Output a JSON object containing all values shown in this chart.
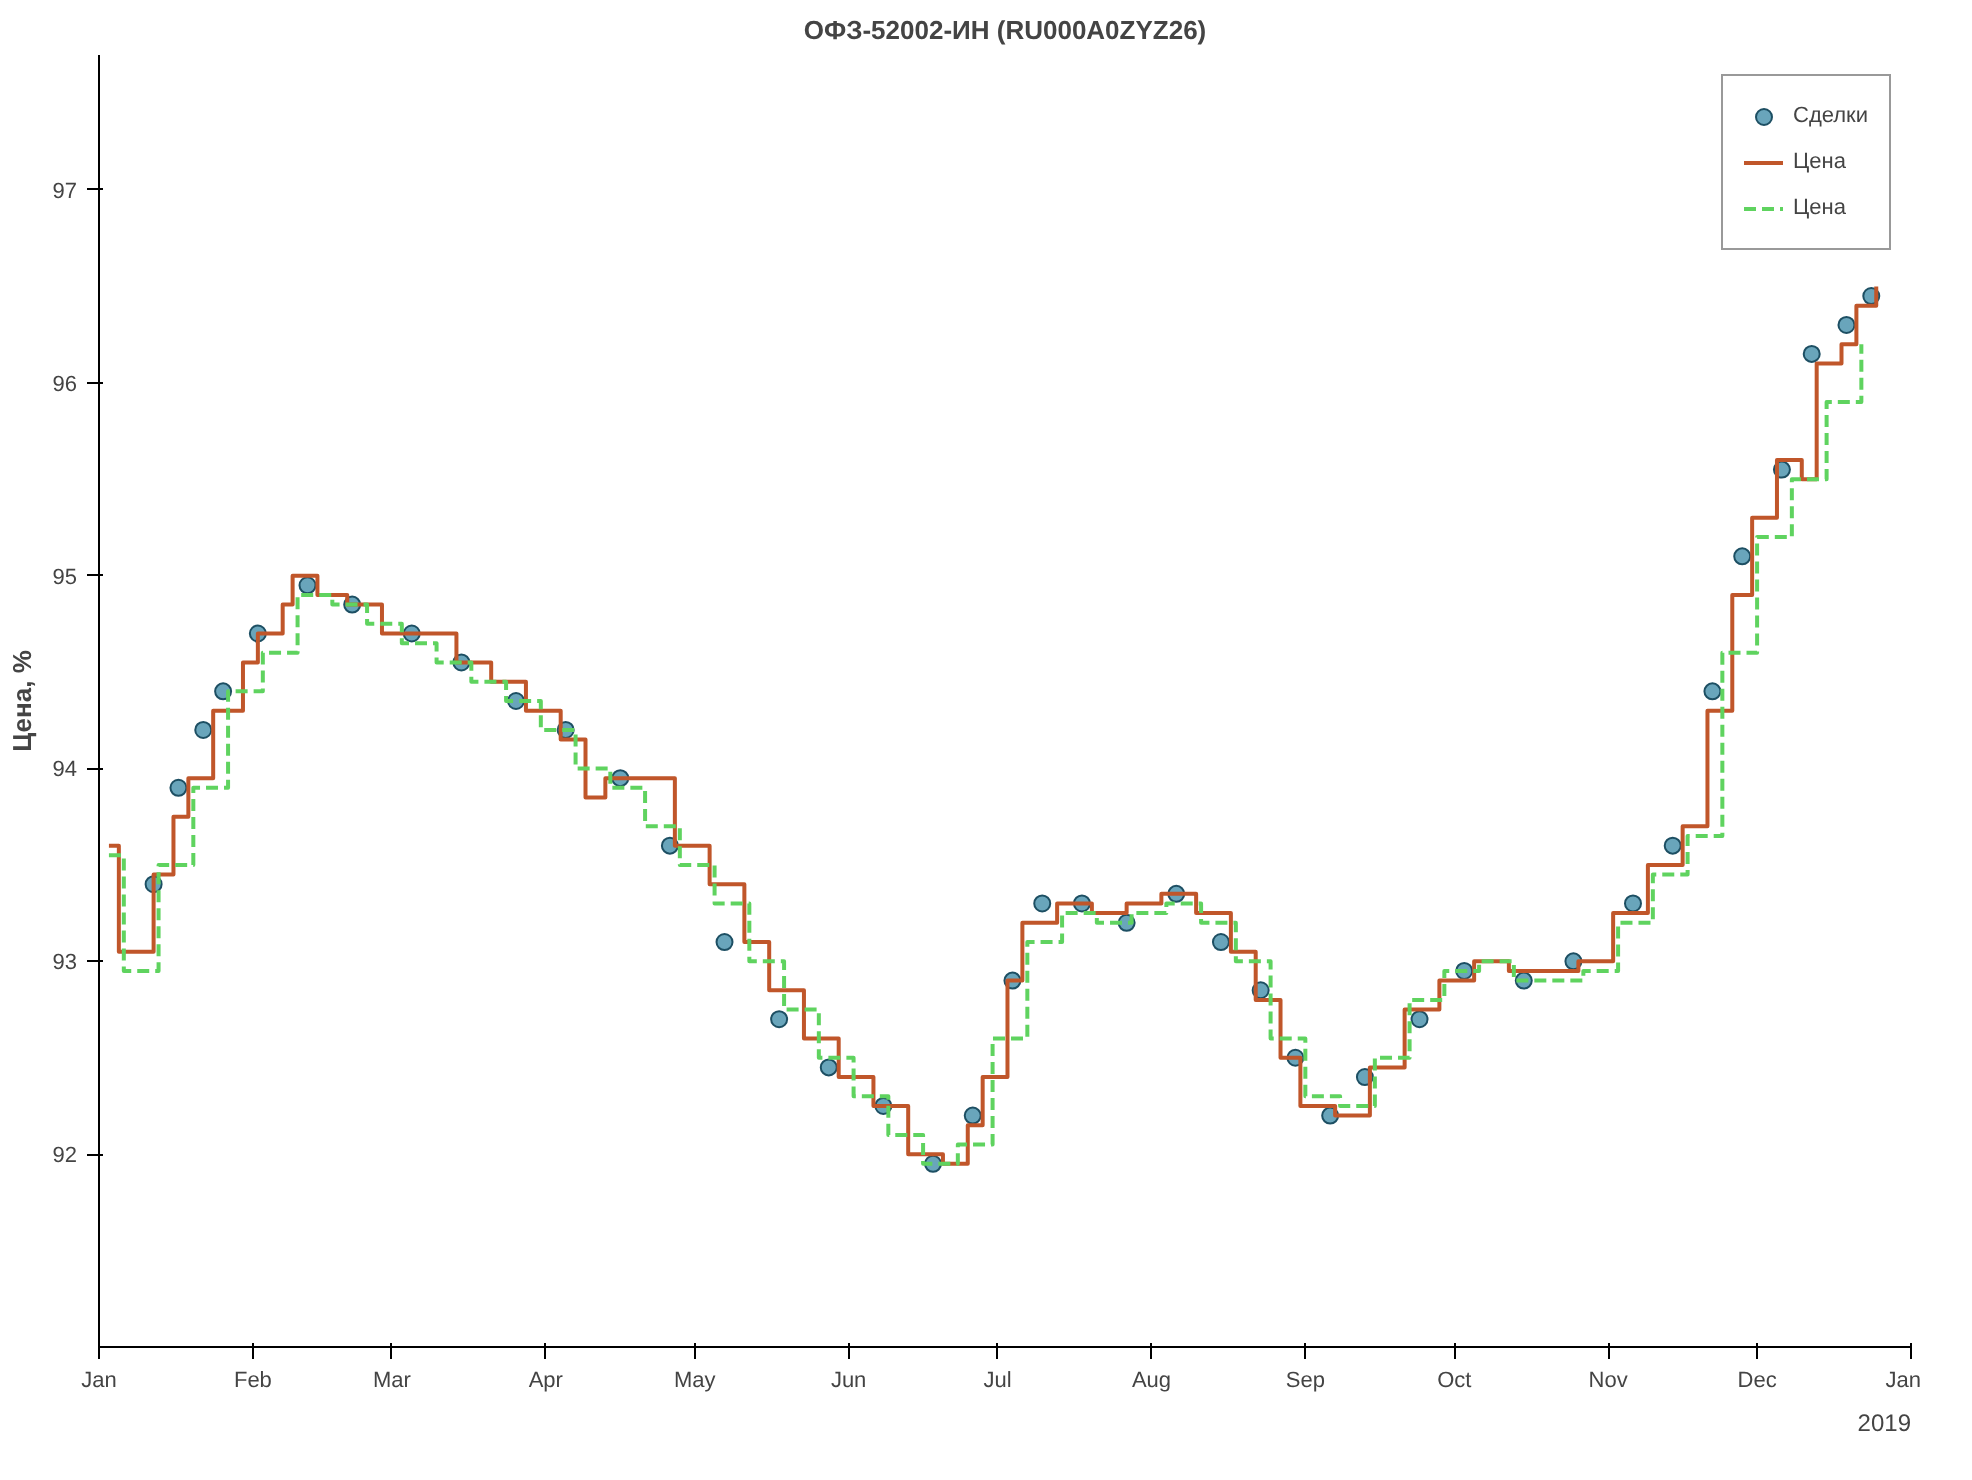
{
  "chart_data": {
    "type": "step",
    "title": "ОФЗ-52002-ИН (RU000A0ZYZ26)",
    "ylabel": "Цена, %",
    "xlim": [
      "2018-01-01",
      "2019-01-01"
    ],
    "xticks": [
      {
        "value": "2018-01-01",
        "label": "Jan"
      },
      {
        "value": "2018-02-01",
        "label": "Feb"
      },
      {
        "value": "2018-03-01",
        "label": "Mar"
      },
      {
        "value": "2018-04-01",
        "label": "Apr"
      },
      {
        "value": "2018-05-01",
        "label": "May"
      },
      {
        "value": "2018-06-01",
        "label": "Jun"
      },
      {
        "value": "2018-07-01",
        "label": "Jul"
      },
      {
        "value": "2018-08-01",
        "label": "Aug"
      },
      {
        "value": "2018-09-01",
        "label": "Sep"
      },
      {
        "value": "2018-10-01",
        "label": "Oct"
      },
      {
        "value": "2018-11-01",
        "label": "Nov"
      },
      {
        "value": "2018-12-01",
        "label": "Dec"
      },
      {
        "value": "2019-01-01",
        "label": "Jan"
      }
    ],
    "ylim": [
      91.0,
      97.7
    ],
    "yticks": [
      92,
      93,
      94,
      95,
      96,
      97
    ],
    "grid": false,
    "legend": "top right",
    "annotations": [
      "2019"
    ],
    "series": [
      {
        "name": "Сделки",
        "type": "scatter",
        "marker": "circle",
        "color": "#2a7f9e",
        "x": [
          "2018-01-12",
          "2018-01-17",
          "2018-01-22",
          "2018-01-26",
          "2018-02-02",
          "2018-02-12",
          "2018-02-21",
          "2018-03-05",
          "2018-03-15",
          "2018-03-26",
          "2018-04-05",
          "2018-04-16",
          "2018-04-26",
          "2018-05-07",
          "2018-05-18",
          "2018-05-28",
          "2018-06-08",
          "2018-06-18",
          "2018-06-26",
          "2018-07-04",
          "2018-07-10",
          "2018-07-18",
          "2018-07-27",
          "2018-08-06",
          "2018-08-15",
          "2018-08-23",
          "2018-08-30",
          "2018-09-06",
          "2018-09-13",
          "2018-09-24",
          "2018-10-03",
          "2018-10-15",
          "2018-10-25",
          "2018-11-06",
          "2018-11-14",
          "2018-11-22",
          "2018-11-28",
          "2018-12-06",
          "2018-12-12",
          "2018-12-19",
          "2018-12-24"
        ],
        "values": [
          93.4,
          93.9,
          94.2,
          94.4,
          94.7,
          94.95,
          94.85,
          94.7,
          94.55,
          94.35,
          94.2,
          93.95,
          93.6,
          93.1,
          92.7,
          92.45,
          92.25,
          91.95,
          92.2,
          92.9,
          93.3,
          93.3,
          93.2,
          93.35,
          93.1,
          92.85,
          92.5,
          92.2,
          92.4,
          92.7,
          92.95,
          92.9,
          93.0,
          93.3,
          93.6,
          94.4,
          95.1,
          95.55,
          96.15,
          96.3,
          96.45
        ]
      },
      {
        "name": "Цена",
        "line_style": "solid",
        "color": "#c0562a",
        "x": [
          "2018-01-03",
          "2018-01-05",
          "2018-01-12",
          "2018-01-16",
          "2018-01-19",
          "2018-01-24",
          "2018-01-30",
          "2018-02-02",
          "2018-02-07",
          "2018-02-09",
          "2018-02-14",
          "2018-02-20",
          "2018-02-27",
          "2018-03-07",
          "2018-03-14",
          "2018-03-21",
          "2018-03-28",
          "2018-04-04",
          "2018-04-09",
          "2018-04-13",
          "2018-04-20",
          "2018-04-27",
          "2018-05-04",
          "2018-05-11",
          "2018-05-16",
          "2018-05-23",
          "2018-05-30",
          "2018-06-06",
          "2018-06-13",
          "2018-06-20",
          "2018-06-25",
          "2018-06-28",
          "2018-07-03",
          "2018-07-06",
          "2018-07-13",
          "2018-07-20",
          "2018-07-27",
          "2018-08-03",
          "2018-08-10",
          "2018-08-17",
          "2018-08-22",
          "2018-08-27",
          "2018-08-31",
          "2018-09-07",
          "2018-09-14",
          "2018-09-21",
          "2018-09-28",
          "2018-10-05",
          "2018-10-12",
          "2018-10-19",
          "2018-10-26",
          "2018-11-02",
          "2018-11-09",
          "2018-11-16",
          "2018-11-21",
          "2018-11-26",
          "2018-11-30",
          "2018-12-05",
          "2018-12-10",
          "2018-12-13",
          "2018-12-18",
          "2018-12-21",
          "2018-12-25"
        ],
        "values": [
          93.6,
          93.05,
          93.45,
          93.75,
          93.95,
          94.3,
          94.55,
          94.7,
          94.85,
          95.0,
          94.9,
          94.85,
          94.7,
          94.7,
          94.55,
          94.45,
          94.3,
          94.15,
          93.85,
          93.95,
          93.95,
          93.6,
          93.4,
          93.1,
          92.85,
          92.6,
          92.4,
          92.25,
          92.0,
          91.95,
          92.15,
          92.4,
          92.9,
          93.2,
          93.3,
          93.25,
          93.3,
          93.35,
          93.25,
          93.05,
          92.8,
          92.5,
          92.25,
          92.2,
          92.45,
          92.75,
          92.9,
          93.0,
          92.95,
          92.95,
          93.0,
          93.25,
          93.5,
          93.7,
          94.3,
          94.9,
          95.3,
          95.6,
          95.5,
          96.1,
          96.2,
          96.4,
          96.5
        ]
      },
      {
        "name": "Цена",
        "line_style": "dashed",
        "color": "#5fd35f",
        "x": [
          "2018-01-03",
          "2018-01-06",
          "2018-01-13",
          "2018-01-20",
          "2018-01-27",
          "2018-02-03",
          "2018-02-10",
          "2018-02-17",
          "2018-02-24",
          "2018-03-03",
          "2018-03-10",
          "2018-03-17",
          "2018-03-24",
          "2018-03-31",
          "2018-04-07",
          "2018-04-14",
          "2018-04-21",
          "2018-04-28",
          "2018-05-05",
          "2018-05-12",
          "2018-05-19",
          "2018-05-26",
          "2018-06-02",
          "2018-06-09",
          "2018-06-16",
          "2018-06-23",
          "2018-06-30",
          "2018-07-07",
          "2018-07-14",
          "2018-07-21",
          "2018-07-28",
          "2018-08-04",
          "2018-08-11",
          "2018-08-18",
          "2018-08-25",
          "2018-09-01",
          "2018-09-08",
          "2018-09-15",
          "2018-09-22",
          "2018-09-29",
          "2018-10-06",
          "2018-10-13",
          "2018-10-20",
          "2018-10-27",
          "2018-11-03",
          "2018-11-10",
          "2018-11-17",
          "2018-11-24",
          "2018-12-01",
          "2018-12-08",
          "2018-12-15",
          "2018-12-22"
        ],
        "values": [
          93.55,
          92.95,
          93.5,
          93.9,
          94.4,
          94.6,
          94.9,
          94.85,
          94.75,
          94.65,
          94.55,
          94.45,
          94.35,
          94.2,
          94.0,
          93.9,
          93.7,
          93.5,
          93.3,
          93.0,
          92.75,
          92.5,
          92.3,
          92.1,
          91.95,
          92.05,
          92.6,
          93.1,
          93.25,
          93.2,
          93.25,
          93.3,
          93.2,
          93.0,
          92.6,
          92.3,
          92.25,
          92.5,
          92.8,
          92.95,
          93.0,
          92.9,
          92.9,
          92.95,
          93.2,
          93.45,
          93.65,
          94.6,
          95.2,
          95.5,
          95.9,
          96.2
        ]
      }
    ]
  }
}
